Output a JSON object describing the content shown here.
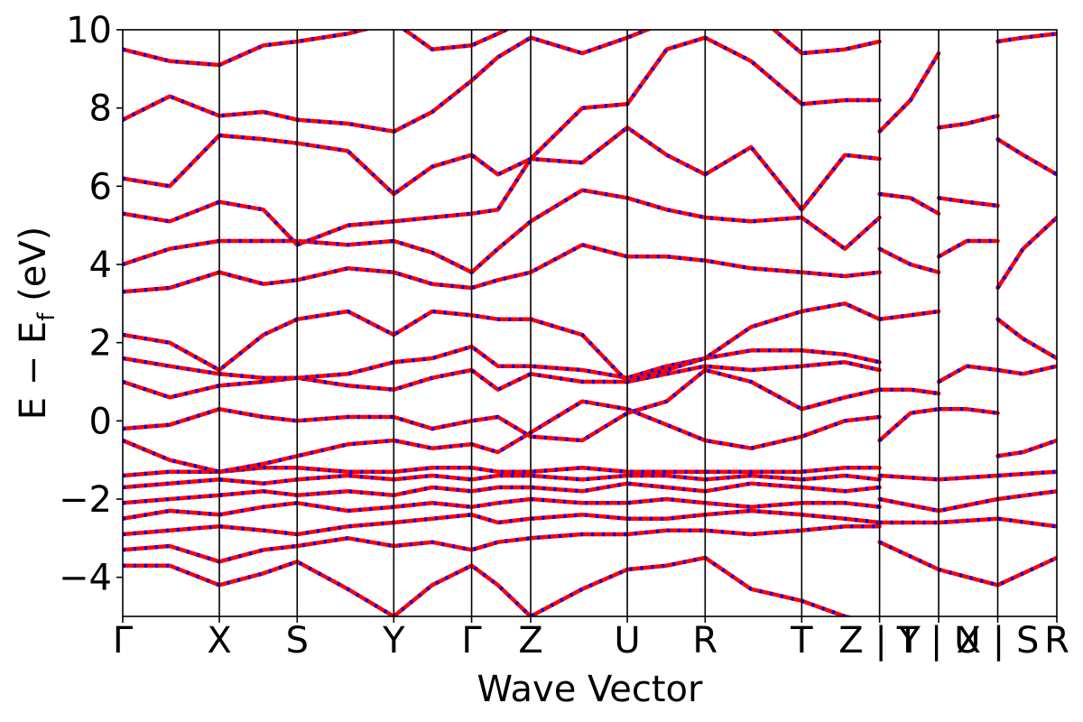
{
  "chart_data": {
    "type": "line",
    "xlabel": "Wave Vector",
    "ylabel_main": "E − E",
    "ylabel_sub": "f",
    "ylabel_unit": " (eV)",
    "ylim": [
      -5,
      10
    ],
    "yticks": [
      {
        "value": 10,
        "label": "10"
      },
      {
        "value": 8,
        "label": "8"
      },
      {
        "value": 6,
        "label": "6"
      },
      {
        "value": 4,
        "label": "4"
      },
      {
        "value": 2,
        "label": "2"
      },
      {
        "value": 0,
        "label": "0"
      },
      {
        "value": -2,
        "label": "−2"
      },
      {
        "value": -4,
        "label": "−4"
      }
    ],
    "kpath": [
      {
        "x": 0,
        "label": "Γ"
      },
      {
        "x": 1.03,
        "label": "X"
      },
      {
        "x": 1.86,
        "label": "S"
      },
      {
        "x": 2.89,
        "label": "Y"
      },
      {
        "x": 3.72,
        "label": "Γ"
      },
      {
        "x": 4.35,
        "label": "Z"
      },
      {
        "x": 5.38,
        "label": "U"
      },
      {
        "x": 6.21,
        "label": "R"
      },
      {
        "x": 7.24,
        "label": "T"
      },
      {
        "x": 8.07,
        "label": "Z | Y"
      },
      {
        "x": 8.7,
        "label": "T | U"
      },
      {
        "x": 9.33,
        "label": "X | S"
      },
      {
        "x": 9.96,
        "label": "R"
      }
    ],
    "grid": false,
    "series_colors": {
      "red": "#ff0000",
      "blue": "#0000ff"
    },
    "series": [
      {
        "x": [
          0,
          0.5,
          1.03,
          1.5,
          1.86,
          2.4,
          2.89,
          3.3,
          3.72,
          4.0,
          4.35,
          4.9,
          5.38,
          5.8,
          6.21,
          6.7,
          7.24,
          7.7,
          8.07
        ],
        "values": [
          -3.7,
          -3.7,
          -4.2,
          -3.9,
          -3.6,
          -4.3,
          -5.0,
          -4.2,
          -3.7,
          -4.2,
          -5.0,
          -4.3,
          -3.8,
          -3.7,
          -3.5,
          -4.3,
          -4.6,
          -5.0,
          -5.2
        ]
      },
      {
        "x": [
          0,
          0.5,
          1.03,
          1.5,
          1.86,
          2.4,
          2.89,
          3.3,
          3.72,
          4.0,
          4.35,
          4.9,
          5.38,
          5.8,
          6.21,
          6.7,
          7.24,
          7.7,
          8.07
        ],
        "values": [
          -3.3,
          -3.2,
          -3.6,
          -3.3,
          -3.2,
          -3.0,
          -3.2,
          -3.1,
          -3.3,
          -3.1,
          -3.0,
          -2.9,
          -2.9,
          -2.8,
          -2.8,
          -2.9,
          -2.8,
          -2.7,
          -2.7
        ]
      },
      {
        "x": [
          0,
          0.5,
          1.03,
          1.5,
          1.86,
          2.4,
          2.89,
          3.3,
          3.72,
          4.0,
          4.35,
          4.9,
          5.38,
          5.8,
          6.21,
          6.7,
          7.24,
          7.7,
          8.07
        ],
        "values": [
          -2.9,
          -2.8,
          -2.7,
          -2.8,
          -2.9,
          -2.7,
          -2.6,
          -2.5,
          -2.4,
          -2.6,
          -2.5,
          -2.4,
          -2.5,
          -2.5,
          -2.4,
          -2.3,
          -2.4,
          -2.5,
          -2.6
        ]
      },
      {
        "x": [
          0,
          0.5,
          1.03,
          1.5,
          1.86,
          2.4,
          2.89,
          3.3,
          3.72,
          4.0,
          4.35,
          4.9,
          5.38,
          5.8,
          6.21,
          6.7,
          7.24,
          7.7,
          8.07
        ],
        "values": [
          -2.5,
          -2.3,
          -2.4,
          -2.2,
          -2.1,
          -2.3,
          -2.2,
          -2.1,
          -2.2,
          -2.1,
          -2.0,
          -2.1,
          -2.1,
          -2.0,
          -2.1,
          -2.2,
          -2.1,
          -2.1,
          -2.2
        ]
      },
      {
        "x": [
          0,
          0.5,
          1.03,
          1.5,
          1.86,
          2.4,
          2.89,
          3.3,
          3.72,
          4.0,
          4.35,
          4.9,
          5.38,
          5.8,
          6.21,
          6.7,
          7.24,
          7.7,
          8.07
        ],
        "values": [
          -2.1,
          -2.0,
          -1.9,
          -1.8,
          -1.9,
          -1.8,
          -1.9,
          -1.7,
          -1.8,
          -1.7,
          -1.7,
          -1.8,
          -1.6,
          -1.7,
          -1.8,
          -1.6,
          -1.7,
          -1.8,
          -1.7
        ]
      },
      {
        "x": [
          0,
          0.5,
          1.03,
          1.5,
          1.86,
          2.4,
          2.89,
          3.3,
          3.72,
          4.0,
          4.35,
          4.9,
          5.38,
          5.8,
          6.21,
          6.7,
          7.24,
          7.7,
          8.07
        ],
        "values": [
          -1.7,
          -1.6,
          -1.5,
          -1.6,
          -1.5,
          -1.4,
          -1.5,
          -1.4,
          -1.5,
          -1.4,
          -1.4,
          -1.5,
          -1.4,
          -1.4,
          -1.5,
          -1.4,
          -1.5,
          -1.4,
          -1.5
        ]
      },
      {
        "x": [
          0,
          0.5,
          1.03,
          1.5,
          1.86,
          2.4,
          2.89,
          3.3,
          3.72,
          4.0,
          4.35,
          4.9,
          5.38,
          5.8,
          6.21,
          6.7,
          7.24,
          7.7,
          8.07
        ],
        "values": [
          -1.4,
          -1.3,
          -1.3,
          -1.2,
          -1.2,
          -1.3,
          -1.3,
          -1.2,
          -1.2,
          -1.3,
          -1.3,
          -1.2,
          -1.3,
          -1.3,
          -1.3,
          -1.3,
          -1.3,
          -1.2,
          -1.2
        ]
      },
      {
        "x": [
          0,
          0.5,
          1.03,
          1.5,
          1.86,
          2.4,
          2.89,
          3.3,
          3.72,
          4.0,
          4.35,
          4.9,
          5.38,
          5.8,
          6.21,
          6.7,
          7.24,
          7.7,
          8.07
        ],
        "values": [
          -0.5,
          -1.0,
          -1.3,
          -1.1,
          -0.9,
          -0.6,
          -0.5,
          -0.7,
          -0.6,
          -0.8,
          -0.3,
          0.5,
          0.3,
          -0.1,
          -0.5,
          -0.7,
          -0.4,
          0.0,
          0.1
        ]
      },
      {
        "x": [
          0,
          0.5,
          1.03,
          1.5,
          1.86,
          2.4,
          2.89,
          3.3,
          3.72,
          4.0,
          4.35,
          4.9,
          5.38,
          5.8,
          6.21,
          6.7,
          7.24,
          7.7,
          8.07
        ],
        "values": [
          -0.2,
          -0.1,
          0.3,
          0.1,
          0.0,
          0.1,
          0.1,
          -0.2,
          0.0,
          0.1,
          -0.4,
          -0.5,
          0.2,
          0.5,
          1.3,
          1.0,
          0.3,
          0.6,
          0.8
        ]
      },
      {
        "x": [
          0,
          0.5,
          1.03,
          1.5,
          1.86,
          2.4,
          2.89,
          3.3,
          3.72,
          4.0,
          4.35,
          4.9,
          5.38,
          5.8,
          6.21,
          6.7,
          7.24,
          7.7,
          8.07
        ],
        "values": [
          1.0,
          0.6,
          0.9,
          1.0,
          1.1,
          0.9,
          0.8,
          1.1,
          1.3,
          0.8,
          1.2,
          1.0,
          1.0,
          1.2,
          1.4,
          1.3,
          1.4,
          1.5,
          1.3
        ]
      },
      {
        "x": [
          0,
          0.5,
          1.03,
          1.5,
          1.86,
          2.4,
          2.89,
          3.3,
          3.72,
          4.0,
          4.35,
          4.9,
          5.38,
          5.8,
          6.21,
          6.7,
          7.24,
          7.7,
          8.07
        ],
        "values": [
          1.6,
          1.4,
          1.2,
          1.1,
          1.1,
          1.2,
          1.5,
          1.6,
          1.9,
          1.4,
          1.4,
          1.3,
          1.1,
          1.4,
          1.6,
          1.8,
          1.8,
          1.7,
          1.5
        ]
      },
      {
        "x": [
          0,
          0.5,
          1.03,
          1.5,
          1.86,
          2.4,
          2.89,
          3.3,
          3.72,
          4.0,
          4.35,
          4.9,
          5.38,
          5.8,
          6.21,
          6.7,
          7.24,
          7.7,
          8.07
        ],
        "values": [
          2.2,
          2.0,
          1.3,
          2.2,
          2.6,
          2.8,
          2.2,
          2.8,
          2.7,
          2.6,
          2.6,
          2.2,
          1.0,
          1.3,
          1.6,
          2.4,
          2.8,
          3.0,
          2.6
        ]
      },
      {
        "x": [
          0,
          0.5,
          1.03,
          1.5,
          1.86,
          2.4,
          2.89,
          3.3,
          3.72,
          4.0,
          4.35,
          4.9,
          5.38,
          5.8,
          6.21,
          6.7,
          7.24,
          7.7,
          8.07
        ],
        "values": [
          3.3,
          3.4,
          3.8,
          3.5,
          3.6,
          3.9,
          3.8,
          3.5,
          3.4,
          3.6,
          3.8,
          4.5,
          4.2,
          4.2,
          4.1,
          3.9,
          3.8,
          3.7,
          3.8
        ]
      },
      {
        "x": [
          0,
          0.5,
          1.03,
          1.5,
          1.86,
          2.4,
          2.89,
          3.3,
          3.72,
          4.0,
          4.35,
          4.9,
          5.38,
          5.8,
          6.21,
          6.7,
          7.24,
          7.7,
          8.07
        ],
        "values": [
          4.0,
          4.4,
          4.6,
          4.6,
          4.6,
          4.5,
          4.6,
          4.3,
          3.8,
          4.4,
          5.1,
          5.9,
          5.7,
          5.4,
          5.2,
          5.1,
          5.2,
          4.4,
          5.2
        ]
      },
      {
        "x": [
          0,
          0.5,
          1.03,
          1.5,
          1.86,
          2.4,
          2.89,
          3.3,
          3.72,
          4.0,
          4.35,
          4.9,
          5.38,
          5.8,
          6.21,
          6.7,
          7.24,
          7.7,
          8.07
        ],
        "values": [
          5.3,
          5.1,
          5.6,
          5.4,
          4.5,
          5.0,
          5.1,
          5.2,
          5.3,
          5.4,
          6.7,
          6.6,
          7.5,
          6.8,
          6.3,
          7.0,
          5.4,
          6.8,
          6.7
        ]
      },
      {
        "x": [
          0,
          0.5,
          1.03,
          1.5,
          1.86,
          2.4,
          2.89,
          3.3,
          3.72,
          4.0,
          4.35,
          4.9,
          5.38,
          5.8,
          6.21,
          6.7,
          7.24,
          7.7,
          8.07
        ],
        "values": [
          6.2,
          6.0,
          7.3,
          7.2,
          7.1,
          6.9,
          5.8,
          6.5,
          6.8,
          6.3,
          6.7,
          8.0,
          8.1,
          9.5,
          9.8,
          9.2,
          8.1,
          8.2,
          8.2
        ]
      },
      {
        "x": [
          0,
          0.5,
          1.03,
          1.5,
          1.86,
          2.4,
          2.89,
          3.3,
          3.72,
          4.0,
          4.35,
          4.9,
          5.38,
          5.8,
          6.21,
          6.7,
          7.24,
          7.7,
          8.07
        ],
        "values": [
          7.7,
          8.3,
          7.8,
          7.9,
          7.7,
          7.6,
          7.4,
          7.9,
          8.7,
          9.3,
          9.8,
          9.4,
          9.8,
          10.2,
          10.3,
          10.5,
          9.4,
          9.5,
          9.7
        ]
      },
      {
        "x": [
          0,
          0.5,
          1.03,
          1.5,
          1.86,
          2.4,
          2.89,
          3.3,
          3.72,
          4.0,
          4.35,
          4.9,
          5.38,
          5.8,
          6.21,
          6.7,
          7.24,
          7.7,
          8.07
        ],
        "values": [
          9.5,
          9.2,
          9.1,
          9.6,
          9.7,
          9.9,
          10.2,
          9.5,
          9.6,
          9.9,
          10.3,
          10.5,
          10.5,
          10.6,
          10.7,
          10.8,
          10.5,
          10.6,
          10.6
        ]
      },
      {
        "x": [
          8.07,
          8.4,
          8.7
        ],
        "values": [
          -0.5,
          0.2,
          0.3
        ]
      },
      {
        "x": [
          8.07,
          8.4,
          8.7
        ],
        "values": [
          0.8,
          0.8,
          0.7
        ]
      },
      {
        "x": [
          8.07,
          8.4,
          8.7
        ],
        "values": [
          2.6,
          2.7,
          2.8
        ]
      },
      {
        "x": [
          8.07,
          8.4,
          8.7
        ],
        "values": [
          4.4,
          4.0,
          3.8
        ]
      },
      {
        "x": [
          8.07,
          8.4,
          8.7
        ],
        "values": [
          5.8,
          5.7,
          5.3
        ]
      },
      {
        "x": [
          8.07,
          8.4,
          8.7
        ],
        "values": [
          7.4,
          8.2,
          9.4
        ]
      },
      {
        "x": [
          8.7,
          9.0,
          9.33
        ],
        "values": [
          0.3,
          0.3,
          0.2
        ]
      },
      {
        "x": [
          8.7,
          9.0,
          9.33
        ],
        "values": [
          1.0,
          1.4,
          1.3
        ]
      },
      {
        "x": [
          8.7,
          9.0,
          9.33
        ],
        "values": [
          4.2,
          4.6,
          4.6
        ]
      },
      {
        "x": [
          8.7,
          9.0,
          9.33
        ],
        "values": [
          5.7,
          5.6,
          5.5
        ]
      },
      {
        "x": [
          8.7,
          9.0,
          9.33
        ],
        "values": [
          7.5,
          7.6,
          7.8
        ]
      },
      {
        "x": [
          9.33,
          9.6,
          9.96
        ],
        "values": [
          -0.9,
          -0.8,
          -0.5
        ]
      },
      {
        "x": [
          9.33,
          9.6,
          9.96
        ],
        "values": [
          1.3,
          1.2,
          1.4
        ]
      },
      {
        "x": [
          9.33,
          9.6,
          9.96
        ],
        "values": [
          2.6,
          2.1,
          1.6
        ]
      },
      {
        "x": [
          9.33,
          9.6,
          9.96
        ],
        "values": [
          3.4,
          4.4,
          5.2
        ]
      },
      {
        "x": [
          9.33,
          9.6,
          9.96
        ],
        "values": [
          7.2,
          6.8,
          6.3
        ]
      },
      {
        "x": [
          9.33,
          9.6,
          9.96
        ],
        "values": [
          9.7,
          9.8,
          9.9
        ]
      },
      {
        "x": [
          8.07,
          8.7,
          9.33,
          9.96
        ],
        "values": [
          -1.4,
          -1.5,
          -1.4,
          -1.3
        ]
      },
      {
        "x": [
          8.07,
          8.7,
          9.33,
          9.96
        ],
        "values": [
          -2.0,
          -2.3,
          -2.0,
          -1.8
        ]
      },
      {
        "x": [
          8.07,
          8.7,
          9.33,
          9.96
        ],
        "values": [
          -2.6,
          -2.6,
          -2.5,
          -2.7
        ]
      },
      {
        "x": [
          8.07,
          8.7,
          9.33,
          9.96
        ],
        "values": [
          -3.1,
          -3.8,
          -4.2,
          -3.5
        ]
      }
    ]
  }
}
